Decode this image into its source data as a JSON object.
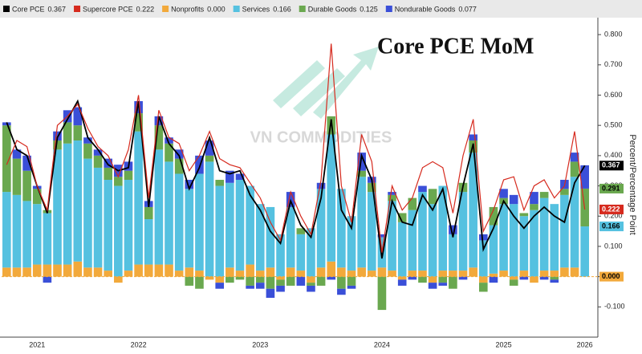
{
  "chart_data": {
    "type": "bar",
    "title": "Core PCE MoM",
    "watermark": "VN COMMODITIES",
    "y_label": "Percent/Percentage Point",
    "categories": [
      null,
      null,
      null,
      "2021",
      null,
      null,
      null,
      null,
      null,
      null,
      null,
      null,
      null,
      "2022",
      null,
      null,
      null,
      null,
      null,
      null,
      null,
      null,
      null,
      null,
      null,
      "2023",
      null,
      null,
      null,
      null,
      null,
      null,
      null,
      null,
      null,
      null,
      null,
      "2024",
      null,
      null,
      null,
      null,
      null,
      null,
      null,
      null,
      null,
      null,
      null,
      "2025",
      null,
      null,
      null,
      null,
      null,
      null,
      null,
      "2026"
    ],
    "ylim": [
      -0.2,
      0.856
    ],
    "yticks": [
      {
        "value": -0.1,
        "label": "-0.100"
      },
      {
        "value": 0,
        "label": "0.000"
      },
      {
        "value": 0.1,
        "label": "0.100"
      },
      {
        "value": 0.2,
        "label": "0.200"
      },
      {
        "value": 0.3,
        "label": "0.300"
      },
      {
        "value": 0.4,
        "label": "0.400"
      },
      {
        "value": 0.5,
        "label": "0.500"
      },
      {
        "value": 0.6,
        "label": "0.600"
      },
      {
        "value": 0.7,
        "label": "0.700"
      },
      {
        "value": 0.8,
        "label": "0.800"
      }
    ],
    "grid": false,
    "series": [
      {
        "name": "Core PCE",
        "style": "line",
        "color": "#000000",
        "latest_label": "0.367",
        "axis_label": "0.367",
        "values": [
          0.51,
          0.42,
          0.4,
          0.3,
          0.21,
          0.46,
          0.52,
          0.58,
          0.46,
          0.42,
          0.37,
          0.35,
          0.36,
          0.58,
          0.23,
          0.53,
          0.44,
          0.4,
          0.29,
          0.36,
          0.46,
          0.35,
          0.34,
          0.35,
          0.27,
          0.22,
          0.15,
          0.11,
          0.25,
          0.17,
          0.13,
          0.26,
          0.52,
          0.22,
          0.16,
          0.4,
          0.32,
          0.06,
          0.25,
          0.18,
          0.17,
          0.27,
          0.22,
          0.29,
          0.13,
          0.3,
          0.44,
          0.09,
          0.16,
          0.25,
          0.2,
          0.16,
          0.2,
          0.23,
          0.2,
          0.18,
          0.31,
          0.367
        ]
      },
      {
        "name": "Supercore PCE",
        "style": "line",
        "color": "#d62a1e",
        "latest_label": "0.222",
        "axis_label": "0.222",
        "values": [
          0.37,
          0.45,
          0.43,
          0.3,
          0.22,
          0.5,
          0.53,
          0.57,
          0.49,
          0.43,
          0.4,
          0.33,
          0.42,
          0.6,
          0.26,
          0.55,
          0.46,
          0.44,
          0.35,
          0.4,
          0.48,
          0.39,
          0.37,
          0.36,
          0.31,
          0.26,
          0.18,
          0.12,
          0.28,
          0.2,
          0.14,
          0.32,
          0.77,
          0.3,
          0.18,
          0.47,
          0.38,
          0.08,
          0.3,
          0.22,
          0.26,
          0.36,
          0.38,
          0.36,
          0.21,
          0.4,
          0.52,
          0.15,
          0.22,
          0.32,
          0.33,
          0.22,
          0.3,
          0.32,
          0.26,
          0.3,
          0.48,
          0.222
        ]
      },
      {
        "name": "Nonprofits",
        "style": "bar",
        "color": "#f2a93b",
        "latest_label": "0.000",
        "axis_label": "0.000",
        "values": [
          0.03,
          0.03,
          0.03,
          0.04,
          0.04,
          0.04,
          0.04,
          0.05,
          0.03,
          0.03,
          0.02,
          -0.02,
          0.02,
          0.04,
          0.04,
          0.04,
          0.04,
          0.02,
          0.03,
          0.02,
          -0.01,
          -0.02,
          0.03,
          0.02,
          0.04,
          0.02,
          0.03,
          -0.01,
          0.03,
          0.02,
          -0.02,
          0.03,
          0.05,
          0.03,
          0.02,
          0.03,
          0.02,
          0.03,
          0.02,
          -0.01,
          0.02,
          0.02,
          -0.02,
          0.02,
          0.02,
          0.02,
          0.03,
          -0.02,
          0.01,
          0.02,
          -0.01,
          0.02,
          -0.02,
          0.02,
          0.02,
          0.03,
          0.03,
          0
        ]
      },
      {
        "name": "Services",
        "style": "bar",
        "color": "#55c1e0",
        "latest_label": "0.166",
        "axis_label": "0.166",
        "values": [
          0.25,
          0.24,
          0.22,
          0.2,
          0.17,
          0.38,
          0.4,
          0.4,
          0.36,
          0.33,
          0.3,
          0.3,
          0.3,
          0.44,
          0.15,
          0.38,
          0.34,
          0.32,
          0.26,
          0.32,
          0.38,
          0.3,
          0.28,
          0.3,
          0.26,
          0.22,
          0.2,
          0.14,
          0.2,
          0.12,
          0.16,
          0.26,
          0.42,
          0.26,
          0.18,
          0.3,
          0.26,
          0.1,
          0.23,
          0.18,
          0.2,
          0.26,
          0.24,
          0.28,
          0.12,
          0.26,
          0.38,
          0.12,
          0.16,
          0.22,
          0.24,
          0.18,
          0.22,
          0.24,
          0.22,
          0.24,
          0.3,
          0.166
        ]
      },
      {
        "name": "Durable Goods",
        "style": "bar",
        "color": "#6aa84f",
        "latest_label": "0.125",
        "axis_label": "0.291",
        "values": [
          0.22,
          0.12,
          0.1,
          0.05,
          0.01,
          0.03,
          0.07,
          0.05,
          0.05,
          0.04,
          0.04,
          0.03,
          0.03,
          0.06,
          0.04,
          0.08,
          0.06,
          0.05,
          -0.03,
          -0.04,
          0.02,
          0.02,
          -0.02,
          -0.01,
          -0.03,
          -0.02,
          -0.04,
          -0.02,
          -0.03,
          0.02,
          -0.01,
          -0.03,
          0.06,
          -0.04,
          -0.03,
          0.02,
          0.03,
          -0.11,
          0.02,
          0.03,
          0.04,
          -0.02,
          0.05,
          -0.02,
          -0.04,
          0.03,
          0.04,
          -0.03,
          0.06,
          0.02,
          -0.02,
          0.01,
          0.02,
          0.02,
          -0.01,
          0.02,
          0.05,
          0.125
        ]
      },
      {
        "name": "Nondurable Goods",
        "style": "bar",
        "color": "#3a4fd8",
        "latest_label": "0.077",
        "values": [
          0.01,
          0.03,
          0.05,
          0.01,
          -0.02,
          0.03,
          0.04,
          0.06,
          0.02,
          0.02,
          0.03,
          0.04,
          0.03,
          0.04,
          0.02,
          0.03,
          0.02,
          0.03,
          0.03,
          0.06,
          0.05,
          -0.02,
          0.04,
          0.02,
          -0.01,
          -0.02,
          -0.03,
          -0.02,
          0.05,
          -0.03,
          -0.02,
          0.02,
          -0.01,
          -0.02,
          -0.01,
          0.06,
          0.02,
          0.01,
          0.01,
          -0.02,
          -0.01,
          0.02,
          -0.02,
          -0.01,
          0.03,
          -0.01,
          0.02,
          0.02,
          -0.02,
          0.03,
          0.03,
          -0.01,
          0.04,
          -0.01,
          -0.01,
          0.03,
          0.03,
          0.077
        ]
      }
    ]
  }
}
